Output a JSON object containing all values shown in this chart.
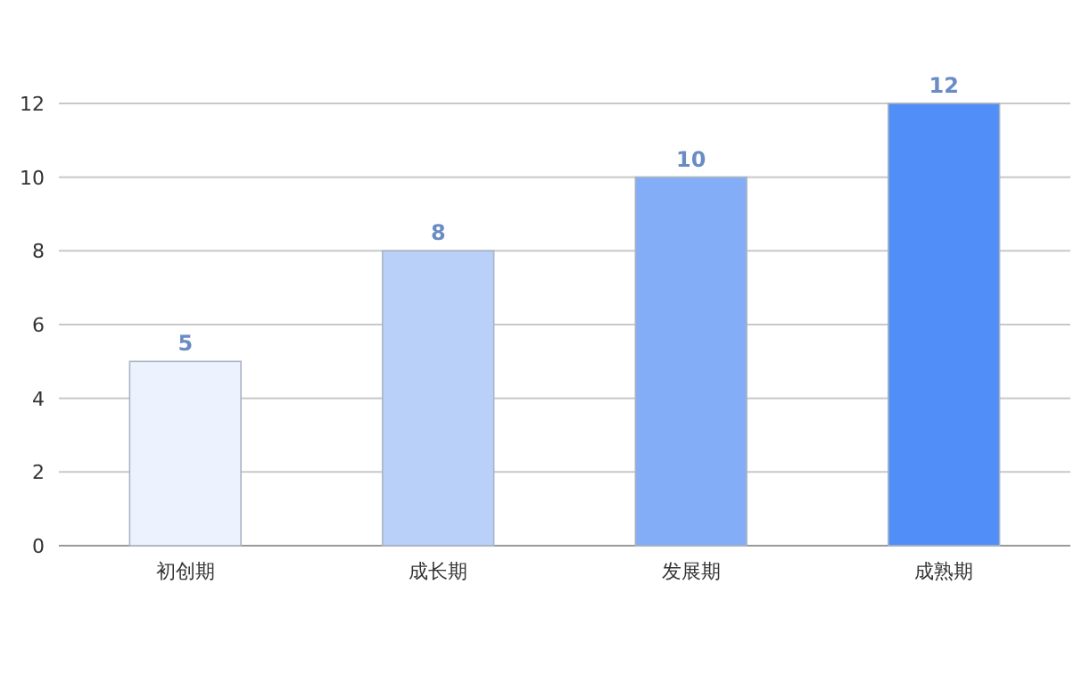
{
  "chart_data": {
    "type": "bar",
    "categories": [
      "初创期",
      "成长期",
      "发展期",
      "成熟期"
    ],
    "values": [
      5,
      8,
      10,
      12
    ],
    "colors": [
      "#edf3fe",
      "#b9d0f9",
      "#84adf7",
      "#528ef8"
    ],
    "ylim": [
      0,
      12
    ],
    "yticks": [
      0,
      2,
      4,
      6,
      8,
      10,
      12
    ],
    "grid": "y",
    "data_labels": true
  }
}
